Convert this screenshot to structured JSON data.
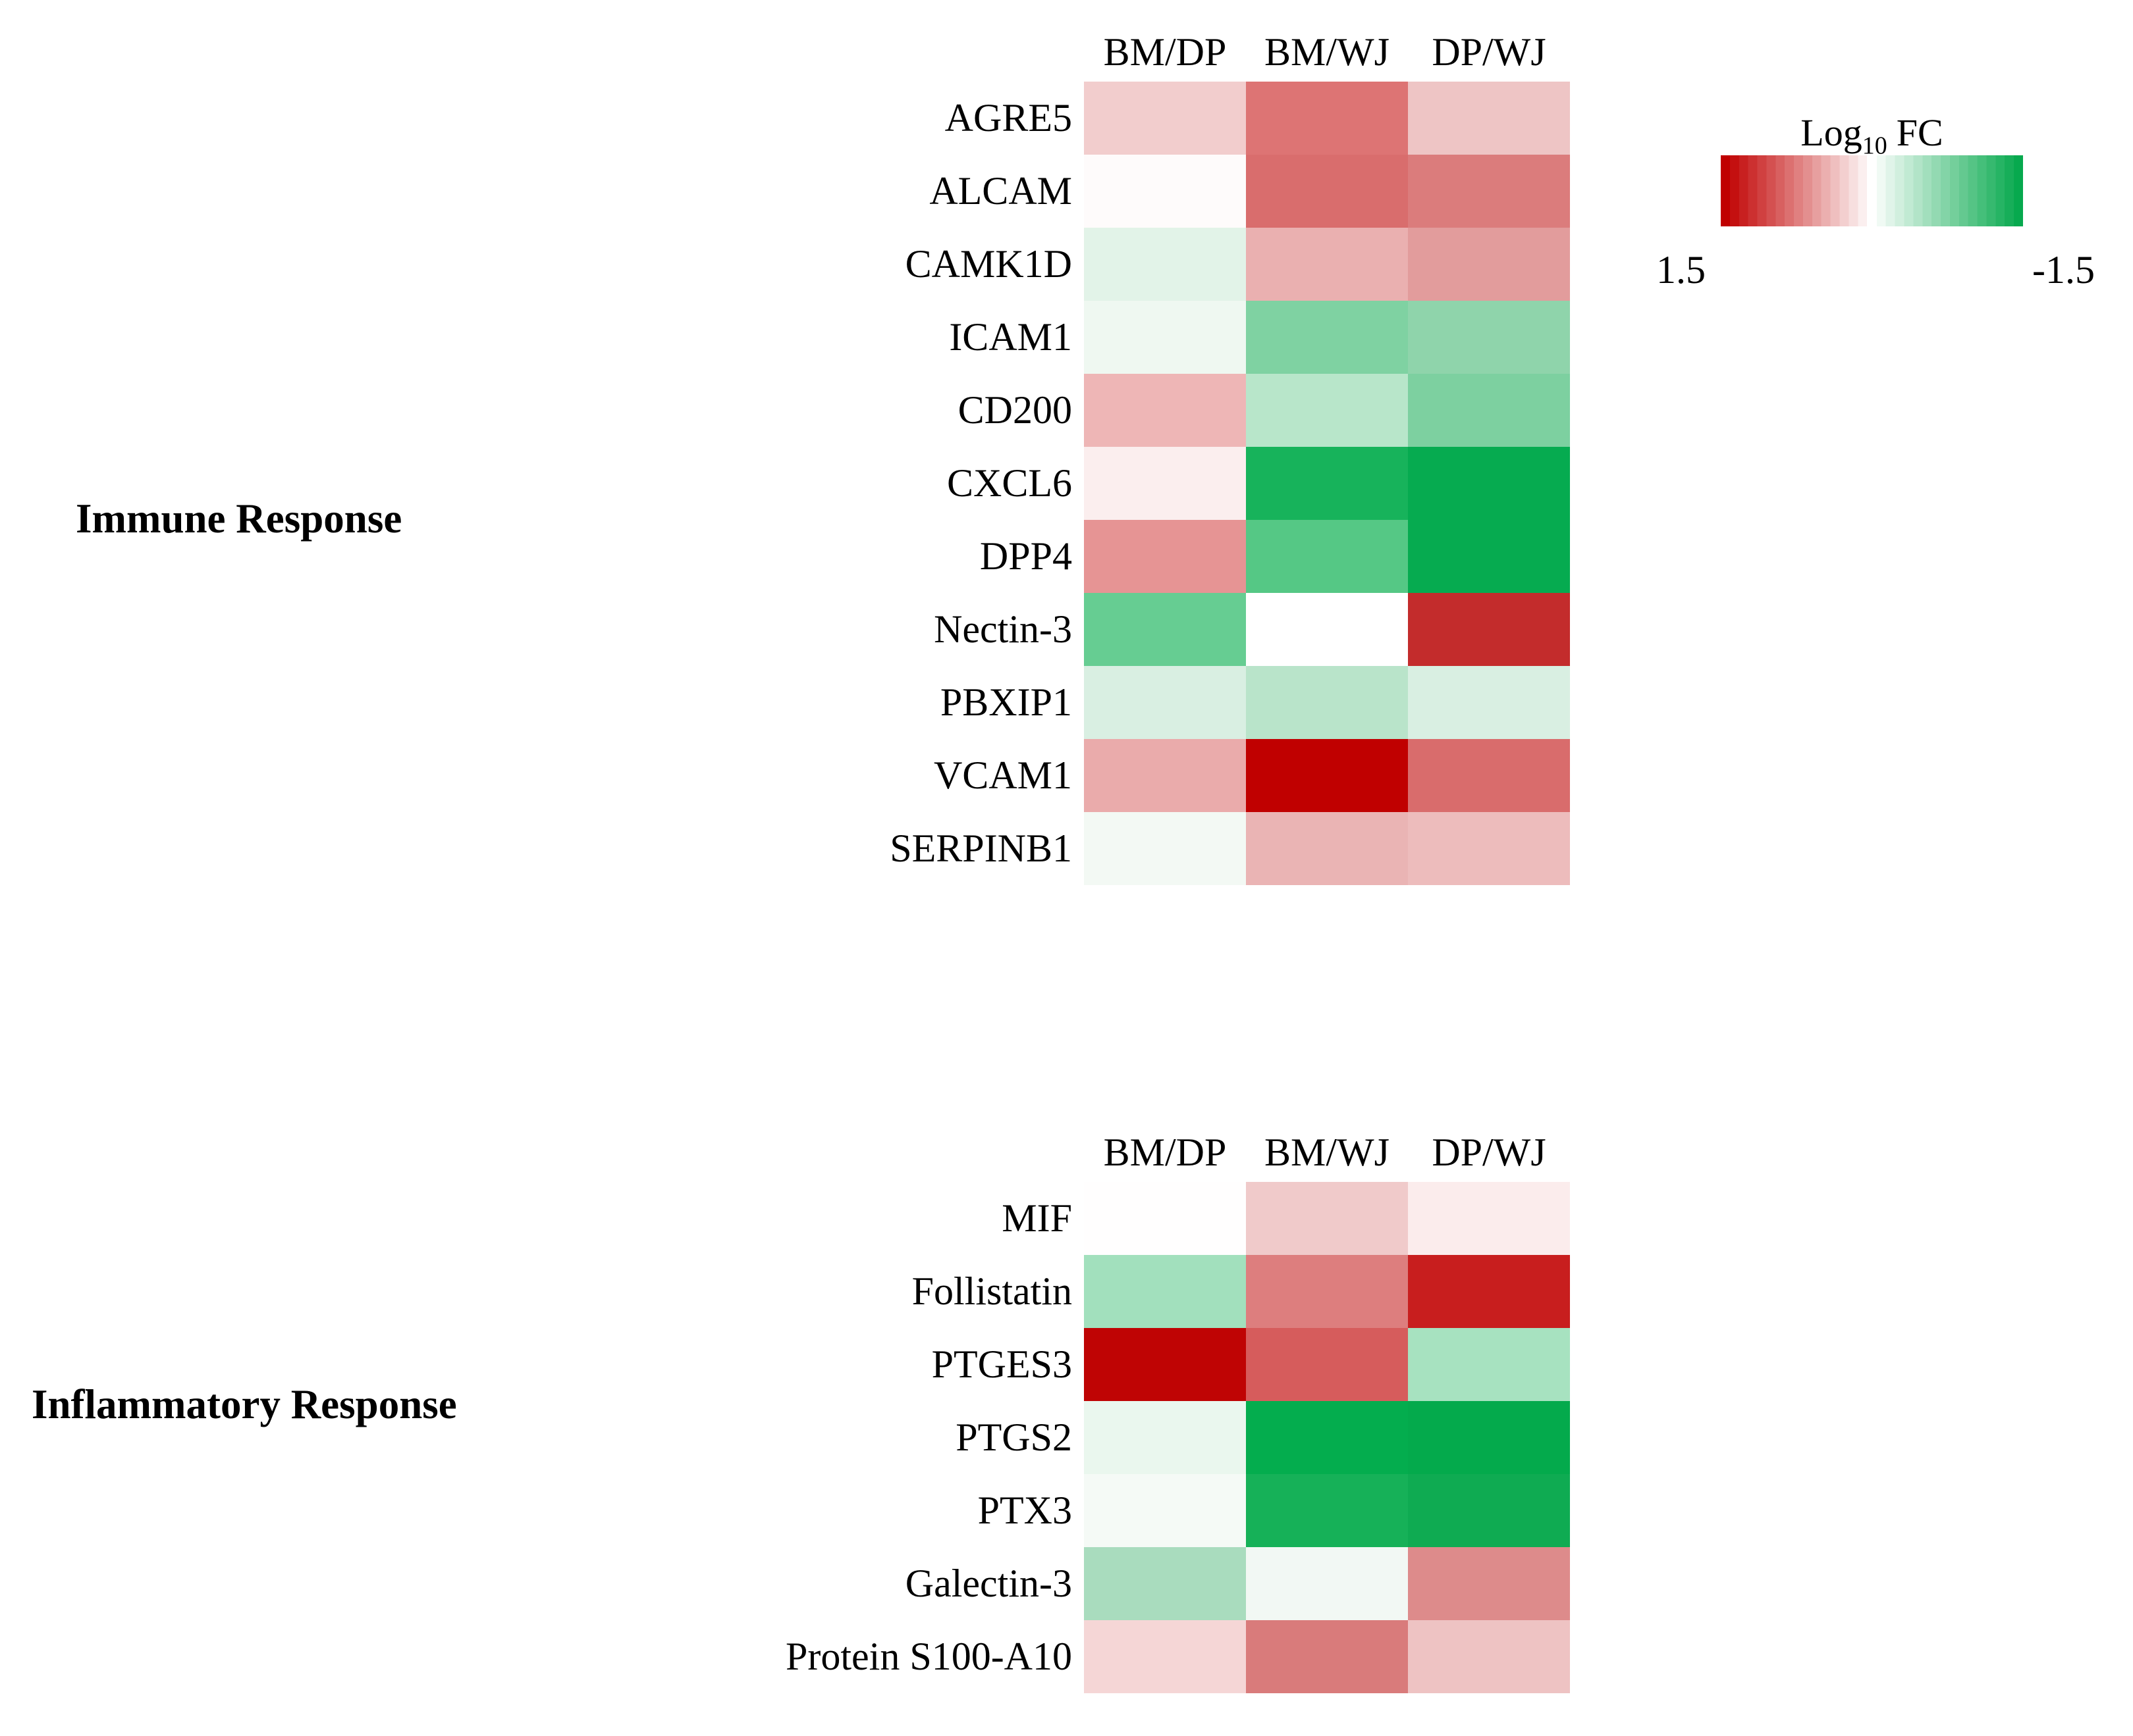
{
  "legend": {
    "title_log": "Log",
    "title_sub": "10",
    "title_fc": "FC",
    "max_label": "1.5",
    "min_label": "-1.5",
    "max_color": "#c00000",
    "mid_color": "#ffffff",
    "min_color": "#07a94e",
    "steps_per_half": 16
  },
  "chart_data": [
    {
      "type": "heatmap",
      "title": "Immune Response",
      "columns": [
        "BM/DP",
        "BM/WJ",
        "DP/WJ"
      ],
      "rows": [
        "AGRE5",
        "ALCAM",
        "CAMK1D",
        "ICAM1",
        "CD200",
        "CXCL6",
        "DPP4",
        "Nectin-3",
        "PBXIP1",
        "VCAM1",
        "SERPINB1"
      ],
      "colorbar": {
        "label": "Log10 FC",
        "left_value": 1.5,
        "right_value": -1.5,
        "left_color": "#c00000",
        "right_color": "#07a94e"
      },
      "legend_position": "top-right",
      "grid": "off",
      "cell_colors": [
        [
          "#f2cdcd",
          "#dd7474",
          "#eec5c5"
        ],
        [
          "#fefbfb",
          "#d96d6d",
          "#db7c7c"
        ],
        [
          "#e2f3e8",
          "#eab0b0",
          "#e29c9c"
        ],
        [
          "#eff8f1",
          "#7fd2a2",
          "#8fd4ab"
        ],
        [
          "#eeb6b6",
          "#b8e6ca",
          "#7dd0a0"
        ],
        [
          "#fbeeee",
          "#17b35b",
          "#06ab50"
        ],
        [
          "#e69494",
          "#55c885",
          "#06ab50"
        ],
        [
          "#66cd92",
          "#ffffff",
          "#c32c2c"
        ],
        [
          "#d9efe2",
          "#b9e4ca",
          "#d9efe2"
        ],
        [
          "#eaabab",
          "#c00000",
          "#d96c6c"
        ],
        [
          "#f3f9f4",
          "#eab4b4",
          "#edbcbc"
        ]
      ],
      "values_log10fc_est": [
        [
          0.3,
          0.8,
          0.35
        ],
        [
          0.0,
          0.85,
          0.75
        ],
        [
          -0.25,
          0.45,
          0.6
        ],
        [
          -0.15,
          -0.75,
          -0.65
        ],
        [
          0.4,
          -0.4,
          -0.75
        ],
        [
          0.1,
          -1.35,
          -1.45
        ],
        [
          0.6,
          -0.95,
          -1.45
        ],
        [
          -0.85,
          0.0,
          1.3
        ],
        [
          -0.2,
          -0.4,
          -0.2
        ],
        [
          0.5,
          1.5,
          0.85
        ],
        [
          -0.05,
          0.45,
          0.4
        ]
      ]
    },
    {
      "type": "heatmap",
      "title": "Inflammatory Response",
      "columns": [
        "BM/DP",
        "BM/WJ",
        "DP/WJ"
      ],
      "rows": [
        "MIF",
        "Follistatin",
        "PTGES3",
        "PTGS2",
        "PTX3",
        "Galectin-3",
        "Protein S100-A10"
      ],
      "colorbar": {
        "label": "Log10 FC",
        "left_value": 1.5,
        "right_value": -1.5,
        "left_color": "#c00000",
        "right_color": "#07a94e"
      },
      "legend_position": "shared-top-right",
      "grid": "off",
      "cell_colors": [
        [
          "#fffefe",
          "#f0caca",
          "#fbecec"
        ],
        [
          "#a2e0bd",
          "#dd7e7e",
          "#c81e1e"
        ],
        [
          "#bf0404",
          "#d65c5c",
          "#a7e2c0"
        ],
        [
          "#eaf7ee",
          "#04ad4e",
          "#04aa4c"
        ],
        [
          "#f5faf6",
          "#16b158",
          "#0fab52"
        ],
        [
          "#a9dcbe",
          "#f2f8f4",
          "#dd8b8b"
        ],
        [
          "#f5d6d6",
          "#d97b7b",
          "#eec3c3"
        ]
      ],
      "values_log10fc_est": [
        [
          0.0,
          0.3,
          0.1
        ],
        [
          -0.55,
          0.75,
          1.3
        ],
        [
          1.45,
          0.95,
          -0.5
        ],
        [
          -0.1,
          -1.45,
          -1.45
        ],
        [
          -0.05,
          -1.35,
          -1.4
        ],
        [
          -0.5,
          -0.05,
          0.7
        ],
        [
          0.25,
          0.8,
          0.35
        ]
      ]
    }
  ]
}
